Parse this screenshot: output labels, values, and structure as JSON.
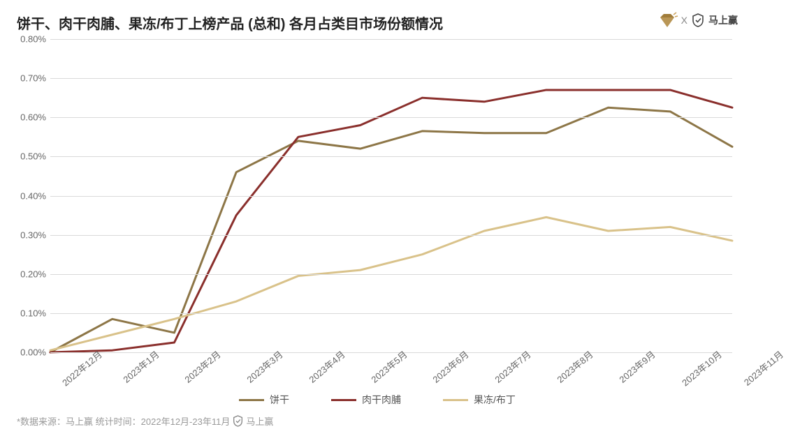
{
  "title": "饼干、肉干肉脯、果冻/布丁上榜产品 (总和) 各月占类目市场份额情况",
  "logos": {
    "x_separator": "X",
    "brand2": "马上赢"
  },
  "chart": {
    "type": "line",
    "background_color": "#ffffff",
    "grid_color": "#d9d9d9",
    "axis_text_color": "#666666",
    "title_fontsize": 20,
    "label_fontsize": 13,
    "legend_fontsize": 14,
    "ylim": [
      0,
      0.8
    ],
    "ytick_step": 0.1,
    "y_format": "percent",
    "y_ticks": [
      "0.00%",
      "0.10%",
      "0.20%",
      "0.30%",
      "0.40%",
      "0.50%",
      "0.60%",
      "0.70%",
      "0.80%"
    ],
    "x_labels": [
      "2022年12月",
      "2023年1月",
      "2023年2月",
      "2023年3月",
      "2023年4月",
      "2023年5月",
      "2023年6月",
      "2023年7月",
      "2023年8月",
      "2023年9月",
      "2023年10月",
      "2023年11月"
    ],
    "line_width": 3,
    "series": [
      {
        "name": "饼干",
        "color": "#8d7647",
        "values": [
          0.0,
          0.085,
          0.05,
          0.46,
          0.54,
          0.52,
          0.565,
          0.56,
          0.56,
          0.625,
          0.615,
          0.525
        ]
      },
      {
        "name": "肉干肉脯",
        "color": "#8a2f2c",
        "values": [
          0.0,
          0.005,
          0.025,
          0.35,
          0.55,
          0.58,
          0.65,
          0.64,
          0.67,
          0.67,
          0.67,
          0.625
        ]
      },
      {
        "name": "果冻/布丁",
        "color": "#d9c28a",
        "values": [
          0.005,
          0.045,
          0.085,
          0.13,
          0.195,
          0.21,
          0.25,
          0.31,
          0.345,
          0.31,
          0.32,
          0.285
        ]
      }
    ]
  },
  "footer": {
    "text": "*数据来源：马上赢 统计时间：2022年12月-23年11月",
    "brand": "马上赢"
  }
}
